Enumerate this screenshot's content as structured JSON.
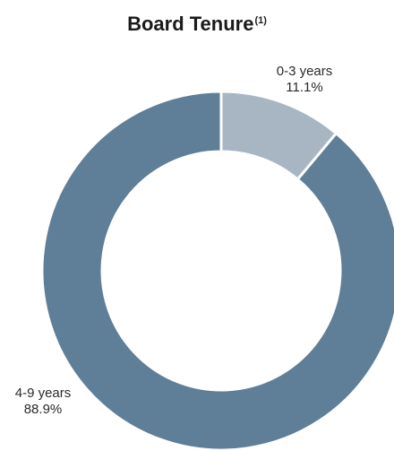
{
  "chart_data": {
    "type": "pie",
    "variant": "donut",
    "title": "Board Tenure",
    "title_footnote": "(1)",
    "slices": [
      {
        "label": "0-3 years",
        "value": 11.1,
        "value_label": "11.1%",
        "color": "#a8b6c4"
      },
      {
        "label": "4-9 years",
        "value": 88.9,
        "value_label": "88.9%",
        "color": "#5f7e97"
      }
    ],
    "start_angle_deg": 0,
    "direction": "clockwise",
    "separator_color": "#ffffff"
  }
}
